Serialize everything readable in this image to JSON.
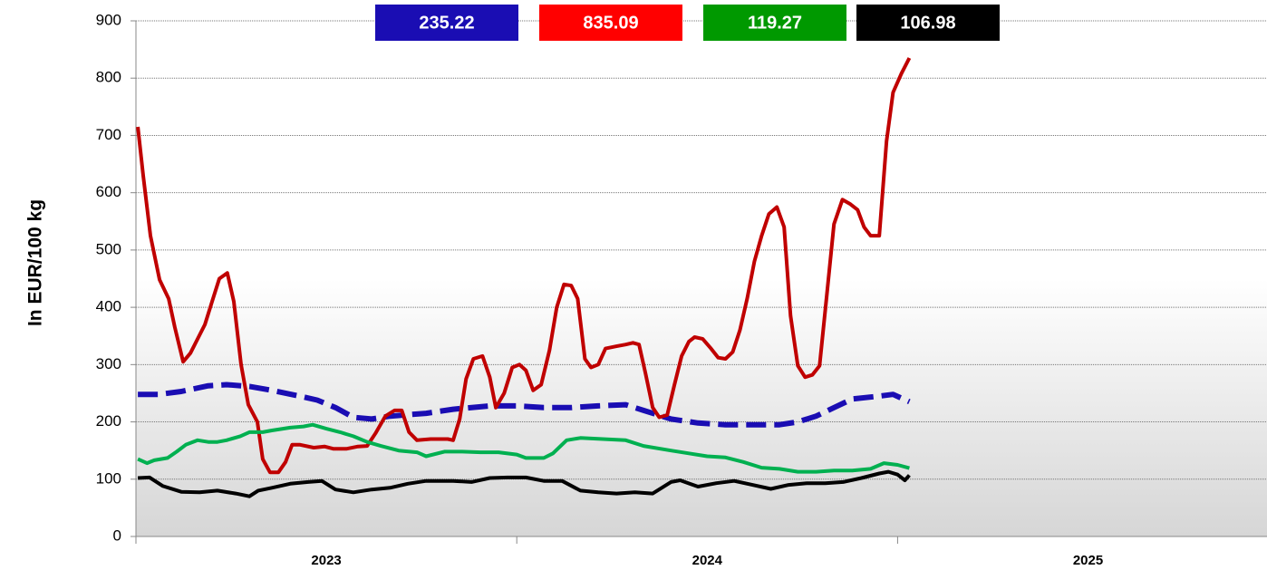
{
  "chart_data": {
    "type": "line",
    "ylabel": "In EUR/100 kg",
    "ylim": [
      0,
      900
    ],
    "yticks": [
      0,
      100,
      200,
      300,
      400,
      500,
      600,
      700,
      800,
      900
    ],
    "xlim": [
      2023,
      2025.97
    ],
    "xticks": [
      2023,
      2024,
      2025
    ],
    "xlabels": [
      {
        "value": 2023.5,
        "label": "2023"
      },
      {
        "value": 2024.5,
        "label": "2024"
      },
      {
        "value": 2025.5,
        "label": "2025"
      }
    ],
    "grid": true,
    "series": [
      {
        "color": "#1a0db3",
        "dashed": true,
        "latest_label": "235.22",
        "x": [
          2023.005,
          2023.06,
          2023.119,
          2023.19,
          2023.238,
          2023.298,
          2023.357,
          2023.429,
          2023.476,
          2023.524,
          2023.571,
          2023.619,
          2023.667,
          2023.762,
          2023.833,
          2023.929,
          2024.0,
          2024.071,
          2024.143,
          2024.214,
          2024.286,
          2024.333,
          2024.405,
          2024.476,
          2024.548,
          2024.619,
          2024.69,
          2024.738,
          2024.786,
          2024.833,
          2024.881,
          2024.952,
          2024.988,
          2025.031
        ],
        "values": [
          248,
          248,
          253,
          263,
          265,
          262,
          255,
          245,
          238,
          225,
          208,
          205,
          210,
          215,
          222,
          228,
          228,
          225,
          225,
          228,
          230,
          220,
          205,
          198,
          195,
          195,
          195,
          200,
          210,
          225,
          240,
          245,
          248,
          235.22
        ]
      },
      {
        "color": "#ff0000",
        "line_color": "#c00000",
        "latest_label": "835.09",
        "x": [
          2023.005,
          2023.019,
          2023.038,
          2023.062,
          2023.086,
          2023.102,
          2023.124,
          2023.143,
          2023.162,
          2023.181,
          2023.2,
          2023.219,
          2023.24,
          2023.257,
          2023.276,
          2023.295,
          2023.319,
          2023.333,
          2023.352,
          2023.374,
          2023.393,
          2023.41,
          2023.431,
          2023.467,
          2023.495,
          2023.519,
          2023.552,
          2023.583,
          2023.607,
          2023.629,
          2023.655,
          2023.679,
          2023.698,
          2023.717,
          2023.738,
          2023.774,
          2023.819,
          2023.833,
          2023.85,
          2023.867,
          2023.886,
          2023.91,
          2023.929,
          2023.945,
          2023.967,
          2023.988,
          2024.007,
          2024.024,
          2024.043,
          2024.064,
          2024.086,
          2024.105,
          2024.124,
          2024.143,
          2024.16,
          2024.179,
          2024.195,
          2024.214,
          2024.233,
          2024.262,
          2024.286,
          2024.305,
          2024.321,
          2024.338,
          2024.357,
          2024.374,
          2024.395,
          2024.414,
          2024.433,
          2024.452,
          2024.467,
          2024.488,
          2024.51,
          2024.529,
          2024.548,
          2024.567,
          2024.586,
          2024.605,
          2024.624,
          2024.643,
          2024.662,
          2024.683,
          2024.702,
          2024.719,
          2024.738,
          2024.757,
          2024.776,
          2024.795,
          2024.814,
          2024.833,
          2024.855,
          2024.876,
          2024.895,
          2024.912,
          2024.929,
          2024.952,
          2024.971,
          2024.988,
          2025.01,
          2025.031
        ],
        "values": [
          715,
          630,
          525,
          448,
          415,
          365,
          305,
          320,
          345,
          370,
          410,
          450,
          460,
          410,
          300,
          230,
          200,
          135,
          112,
          112,
          130,
          160,
          160,
          155,
          157,
          153,
          153,
          157,
          158,
          180,
          210,
          220,
          220,
          182,
          168,
          170,
          170,
          168,
          205,
          275,
          310,
          315,
          278,
          225,
          250,
          295,
          300,
          290,
          255,
          265,
          325,
          400,
          440,
          438,
          415,
          310,
          295,
          300,
          328,
          332,
          335,
          338,
          335,
          285,
          225,
          208,
          212,
          265,
          315,
          340,
          348,
          345,
          328,
          312,
          310,
          322,
          360,
          415,
          480,
          525,
          563,
          575,
          540,
          385,
          298,
          278,
          282,
          298,
          420,
          545,
          588,
          580,
          570,
          540,
          525,
          525,
          690,
          775,
          808,
          835.09
        ]
      },
      {
        "color": "#009900",
        "line_color": "#00b050",
        "latest_label": "119.27",
        "x": [
          2023.005,
          2023.029,
          2023.048,
          2023.083,
          2023.107,
          2023.131,
          2023.162,
          2023.19,
          2023.214,
          2023.238,
          2023.274,
          2023.298,
          2023.333,
          2023.357,
          2023.405,
          2023.44,
          2023.464,
          2023.5,
          2023.536,
          2023.571,
          2023.607,
          2023.643,
          2023.69,
          2023.738,
          2023.762,
          2023.81,
          2023.857,
          2023.905,
          2023.952,
          2024.0,
          2024.024,
          2024.071,
          2024.095,
          2024.131,
          2024.167,
          2024.226,
          2024.286,
          2024.333,
          2024.405,
          2024.452,
          2024.5,
          2024.548,
          2024.595,
          2024.643,
          2024.69,
          2024.738,
          2024.786,
          2024.833,
          2024.881,
          2024.929,
          2024.964,
          2025.0,
          2025.031
        ],
        "values": [
          135,
          128,
          133,
          137,
          148,
          160,
          168,
          165,
          165,
          168,
          175,
          182,
          182,
          185,
          190,
          192,
          195,
          188,
          182,
          175,
          165,
          158,
          150,
          147,
          140,
          148,
          148,
          147,
          147,
          143,
          137,
          137,
          145,
          168,
          172,
          170,
          168,
          158,
          150,
          145,
          140,
          138,
          130,
          120,
          118,
          113,
          113,
          115,
          115,
          118,
          128,
          125,
          119.27
        ]
      },
      {
        "color": "#000000",
        "line_color": "#000000",
        "latest_label": "106.98",
        "x": [
          2023.005,
          2023.036,
          2023.071,
          2023.119,
          2023.167,
          2023.214,
          2023.262,
          2023.298,
          2023.321,
          2023.357,
          2023.405,
          2023.452,
          2023.488,
          2023.524,
          2023.571,
          2023.619,
          2023.667,
          2023.714,
          2023.762,
          2023.833,
          2023.881,
          2023.929,
          2023.976,
          2024.024,
          2024.071,
          2024.119,
          2024.167,
          2024.214,
          2024.262,
          2024.31,
          2024.357,
          2024.405,
          2024.429,
          2024.476,
          2024.524,
          2024.571,
          2024.619,
          2024.667,
          2024.714,
          2024.762,
          2024.81,
          2024.857,
          2024.905,
          2024.952,
          2024.976,
          2025.0,
          2025.019,
          2025.031
        ],
        "values": [
          102,
          103,
          88,
          78,
          77,
          80,
          75,
          70,
          80,
          85,
          92,
          95,
          97,
          82,
          77,
          82,
          85,
          92,
          97,
          97,
          95,
          102,
          103,
          103,
          97,
          97,
          80,
          77,
          75,
          77,
          75,
          95,
          98,
          87,
          93,
          97,
          90,
          83,
          90,
          93,
          93,
          95,
          102,
          110,
          113,
          108,
          98,
          106.98
        ]
      }
    ]
  }
}
